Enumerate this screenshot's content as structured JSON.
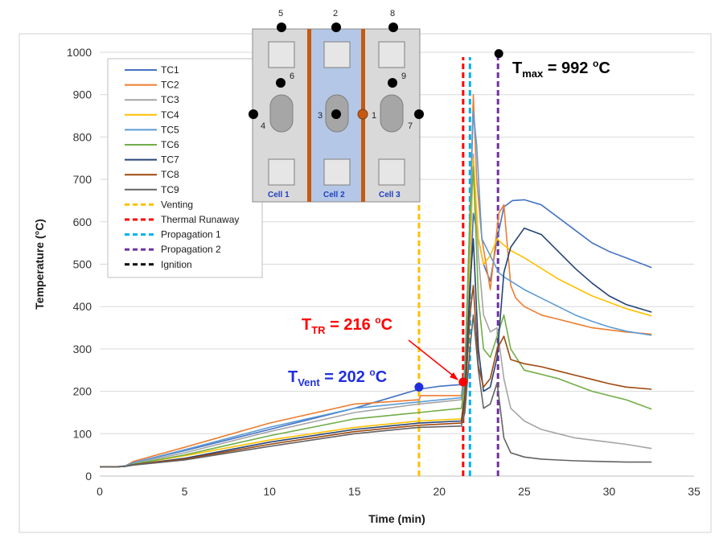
{
  "chart_data": {
    "type": "line",
    "xlabel": "Time (min)",
    "ylabel": "Temperature (°C)",
    "xlim": [
      0,
      35
    ],
    "ylim": [
      0,
      1000
    ],
    "x_ticks": [
      0,
      5,
      10,
      15,
      20,
      25,
      30,
      35
    ],
    "y_ticks": [
      0,
      100,
      200,
      300,
      400,
      500,
      600,
      700,
      800,
      900,
      1000
    ],
    "grid": "horizontal",
    "legend_position": "top-left",
    "series": [
      {
        "name": "TC1",
        "color": "#4472C4",
        "x": [
          0,
          1,
          1.5,
          2,
          5,
          10,
          15,
          18.8,
          20,
          21.3,
          21.5,
          21.8,
          22,
          22.3,
          22.6,
          23,
          23.4,
          23.8,
          24.3,
          25,
          26,
          27,
          28,
          29,
          30,
          31,
          32.5
        ],
        "y": [
          22,
          22,
          24,
          32,
          60,
          110,
          160,
          205,
          212,
          216,
          240,
          420,
          620,
          560,
          500,
          460,
          560,
          635,
          650,
          652,
          640,
          610,
          580,
          550,
          530,
          515,
          492
        ]
      },
      {
        "name": "TC2",
        "color": "#ED7D31",
        "x": [
          0,
          1,
          1.5,
          2,
          5,
          10,
          15,
          18.8,
          18.9,
          21.3,
          21.5,
          21.8,
          22,
          22.2,
          22.5,
          23,
          23.5,
          23.8,
          24.2,
          24.5,
          25,
          26,
          27,
          28,
          29,
          30,
          31,
          32.5
        ],
        "y": [
          22,
          22,
          24,
          35,
          68,
          125,
          170,
          180,
          190,
          190,
          260,
          600,
          900,
          700,
          560,
          440,
          620,
          640,
          450,
          420,
          400,
          380,
          370,
          360,
          350,
          345,
          340,
          335
        ]
      },
      {
        "name": "TC3",
        "color": "#A5A5A5",
        "x": [
          0,
          1,
          1.5,
          2,
          5,
          10,
          15,
          18.8,
          21.3,
          21.5,
          21.8,
          22,
          22.3,
          22.6,
          23,
          23.4,
          23.8,
          24.2,
          25,
          26,
          27,
          28,
          29,
          30,
          31,
          32.5
        ],
        "y": [
          22,
          22,
          23,
          30,
          55,
          105,
          150,
          170,
          180,
          240,
          500,
          760,
          520,
          380,
          340,
          350,
          230,
          160,
          130,
          110,
          100,
          90,
          85,
          80,
          75,
          65
        ]
      },
      {
        "name": "TC4",
        "color": "#FFC000",
        "x": [
          0,
          1,
          1.5,
          2,
          5,
          10,
          15,
          18.8,
          21.3,
          21.5,
          21.8,
          22,
          22.3,
          22.6,
          23,
          23.4,
          23.8,
          24.3,
          25,
          26,
          27,
          28,
          29,
          30,
          31,
          32.5
        ],
        "y": [
          22,
          22,
          23,
          28,
          48,
          85,
          115,
          130,
          135,
          200,
          500,
          750,
          560,
          500,
          520,
          560,
          545,
          530,
          515,
          490,
          465,
          445,
          425,
          410,
          395,
          378
        ]
      },
      {
        "name": "TC5",
        "color": "#5B9BD5",
        "x": [
          0,
          1,
          1.5,
          2,
          5,
          10,
          15,
          18.8,
          21.3,
          21.5,
          21.8,
          22,
          22.2,
          22.5,
          23,
          23.5,
          23.8,
          24.2,
          25,
          26,
          27,
          28,
          29,
          30,
          31,
          32.5
        ],
        "y": [
          22,
          22,
          24,
          32,
          62,
          115,
          160,
          175,
          185,
          250,
          620,
          860,
          780,
          560,
          520,
          480,
          470,
          460,
          440,
          420,
          400,
          380,
          365,
          352,
          342,
          332
        ]
      },
      {
        "name": "TC6",
        "color": "#70AD47",
        "x": [
          0,
          1,
          1.5,
          2,
          5,
          10,
          15,
          18.8,
          21.3,
          21.5,
          21.8,
          22,
          22.3,
          22.6,
          23,
          23.4,
          23.8,
          24.2,
          25,
          26,
          27,
          28,
          29,
          30,
          31,
          32.5
        ],
        "y": [
          22,
          22,
          23,
          28,
          50,
          95,
          135,
          150,
          160,
          220,
          600,
          730,
          420,
          300,
          280,
          330,
          380,
          300,
          250,
          240,
          230,
          215,
          200,
          190,
          180,
          158
        ]
      },
      {
        "name": "TC7",
        "color": "#264478",
        "x": [
          0,
          1,
          1.5,
          2,
          5,
          10,
          15,
          18.8,
          21.3,
          21.5,
          21.8,
          22,
          22.3,
          22.6,
          23,
          23.4,
          23.8,
          24.2,
          25,
          26,
          27,
          28,
          29,
          30,
          31,
          32.5
        ],
        "y": [
          22,
          22,
          23,
          27,
          42,
          80,
          110,
          125,
          130,
          190,
          450,
          560,
          300,
          200,
          210,
          280,
          480,
          540,
          585,
          570,
          530,
          490,
          455,
          425,
          405,
          387
        ]
      },
      {
        "name": "TC8",
        "color": "#9E480E",
        "x": [
          0,
          1,
          1.5,
          2,
          5,
          10,
          15,
          18.8,
          21.3,
          21.5,
          21.8,
          22,
          22.3,
          22.6,
          23,
          23.4,
          23.8,
          24.2,
          25,
          26,
          27,
          28,
          29,
          30,
          31,
          32.5
        ],
        "y": [
          22,
          22,
          23,
          27,
          40,
          75,
          105,
          120,
          125,
          170,
          380,
          450,
          260,
          210,
          230,
          300,
          330,
          275,
          265,
          258,
          248,
          238,
          228,
          218,
          210,
          205
        ]
      },
      {
        "name": "TC9",
        "color": "#636363",
        "x": [
          0,
          1,
          1.5,
          2,
          5,
          10,
          15,
          18.8,
          21.3,
          21.5,
          21.8,
          22,
          22.3,
          22.6,
          23,
          23.4,
          23.8,
          24.2,
          25,
          26,
          27,
          28,
          29,
          30,
          31,
          32.5
        ],
        "y": [
          22,
          22,
          23,
          26,
          38,
          70,
          100,
          115,
          118,
          150,
          300,
          380,
          250,
          160,
          170,
          220,
          90,
          55,
          45,
          40,
          38,
          36,
          35,
          34,
          33,
          33
        ]
      }
    ],
    "vlines": [
      {
        "name": "Venting",
        "x": 18.8,
        "color": "#FFC000"
      },
      {
        "name": "Thermal Runaway",
        "x": 21.4,
        "color": "#FF0000"
      },
      {
        "name": "Propagation 1",
        "x": 21.8,
        "color": "#00B0F0"
      },
      {
        "name": "Propagation 2",
        "x": 23.5,
        "color": "#7030A0"
      },
      {
        "name": "Ignition",
        "x": 23.5,
        "color": "#000000"
      }
    ],
    "markers": [
      {
        "x": 18.8,
        "y": 210,
        "color": "#1F2FE0"
      },
      {
        "x": 21.4,
        "y": 222,
        "color": "#FF0000"
      },
      {
        "x": 23.5,
        "y": 997,
        "color": "#000000"
      }
    ],
    "annotations": {
      "tmax": {
        "label": "T",
        "sub": "max",
        "value": " = 992 ",
        "sup": "o",
        "unit": "C",
        "color": "#000000"
      },
      "ttr": {
        "label": "T",
        "sub": "TR",
        "value": " = 216 ",
        "sup": "o",
        "unit": "C",
        "color": "#FF0000"
      },
      "tvent": {
        "label": "T",
        "sub": "Vent",
        "value": " = 202 ",
        "sup": "o",
        "unit": "C",
        "color": "#1F2FE0"
      }
    }
  },
  "inset": {
    "tc_labels": [
      "1",
      "2",
      "3",
      "4",
      "5",
      "6",
      "7",
      "8",
      "9"
    ],
    "cells": [
      "Cell 1",
      "Cell 2",
      "Cell 3"
    ]
  }
}
